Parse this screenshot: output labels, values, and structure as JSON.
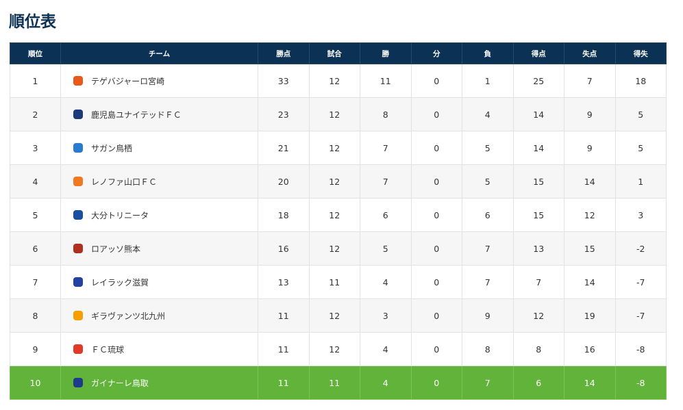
{
  "header": {
    "title": "順位表"
  },
  "table": {
    "columns": [
      "順位",
      "チーム",
      "勝点",
      "試合",
      "勝",
      "分",
      "負",
      "得点",
      "失点",
      "得失"
    ],
    "rows": [
      [
        1,
        "テゲバジャーロ宮崎",
        33,
        12,
        11,
        0,
        1,
        25,
        7,
        18
      ],
      [
        2,
        "鹿児島ユナイテッドＦＣ",
        23,
        12,
        8,
        0,
        4,
        14,
        9,
        5
      ],
      [
        3,
        "サガン鳥栖",
        21,
        12,
        7,
        0,
        5,
        14,
        9,
        5
      ],
      [
        4,
        "レノファ山口ＦＣ",
        20,
        12,
        7,
        0,
        5,
        15,
        14,
        1
      ],
      [
        5,
        "大分トリニータ",
        18,
        12,
        6,
        0,
        6,
        15,
        12,
        3
      ],
      [
        6,
        "ロアッソ熊本",
        16,
        12,
        5,
        0,
        7,
        13,
        15,
        -2
      ],
      [
        7,
        "レイラック滋賀",
        13,
        11,
        4,
        0,
        7,
        7,
        14,
        -7
      ],
      [
        8,
        "ギラヴァンツ北九州",
        11,
        12,
        3,
        0,
        9,
        12,
        19,
        -7
      ],
      [
        9,
        "ＦＣ琉球",
        11,
        12,
        4,
        0,
        8,
        8,
        16,
        -8
      ],
      [
        10,
        "ガイナーレ鳥取",
        11,
        11,
        4,
        0,
        7,
        6,
        14,
        -8
      ]
    ]
  }
}
